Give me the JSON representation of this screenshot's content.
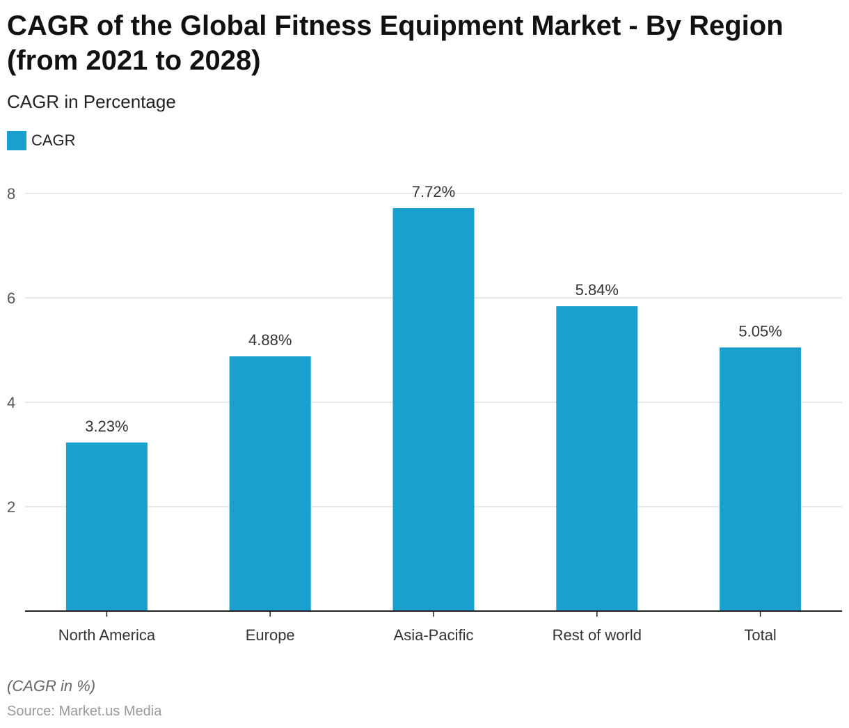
{
  "header": {
    "title": "CAGR of the Global Fitness Equipment Market - By Region (from 2021 to 2028)",
    "subtitle": "CAGR in Percentage"
  },
  "legend": {
    "label": "CAGR"
  },
  "footer": {
    "note": "(CAGR in %)",
    "source": "Source: Market.us Media"
  },
  "colors": {
    "bar": "#1aa0ce",
    "grid": "#d9d9d9",
    "axis": "#222222",
    "tick_text": "#555555",
    "label_text": "#333333"
  },
  "chart_data": {
    "type": "bar",
    "title": "CAGR of the Global Fitness Equipment Market - By Region (from 2021 to 2028)",
    "ylabel": "CAGR in Percentage",
    "xlabel": "",
    "categories": [
      "North America",
      "Europe",
      "Asia-Pacific",
      "Rest of world",
      "Total"
    ],
    "series": [
      {
        "name": "CAGR",
        "values": [
          3.23,
          4.88,
          7.72,
          5.84,
          5.05
        ],
        "labels": [
          "3.23%",
          "4.88%",
          "7.72%",
          "5.84%",
          "5.05%"
        ]
      }
    ],
    "ylim": [
      0,
      8
    ],
    "yticks": [
      2,
      4,
      6,
      8
    ],
    "grid": true,
    "legend_position": "top-left"
  }
}
